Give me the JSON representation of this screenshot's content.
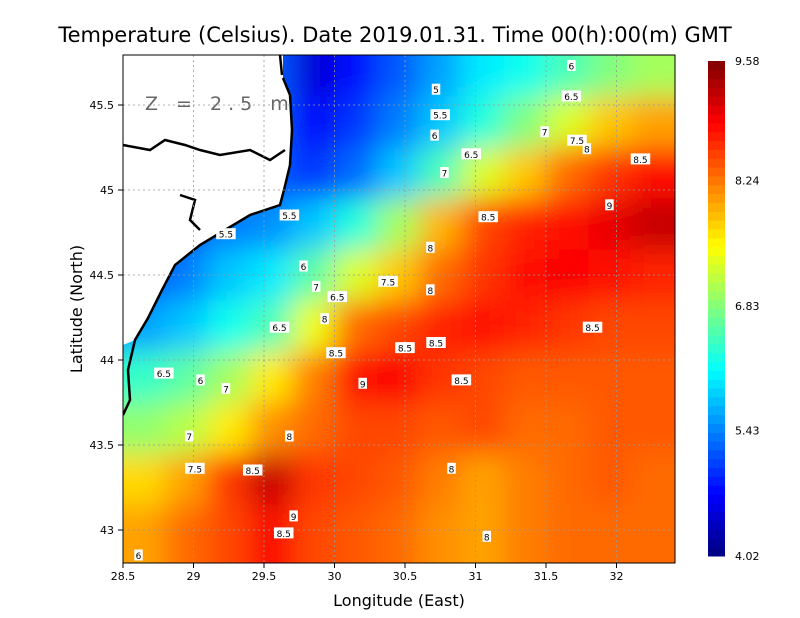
{
  "chart_data": {
    "type": "heatmap",
    "title": "Temperature (Celsius). Date 2019.01.31. Time 00(h):00(m) GMT",
    "xlabel": "Longitude (East)",
    "ylabel": "Latitude (North)",
    "annotation": "Z = 2.5 m",
    "xlim": [
      28.5,
      32.41
    ],
    "ylim": [
      42.81,
      45.79
    ],
    "xticks": [
      "28.5",
      "29",
      "29.5",
      "30",
      "30.5",
      "31",
      "31.5",
      "32"
    ],
    "yticks": [
      "43",
      "43.5",
      "44",
      "44.5",
      "45",
      "45.5"
    ],
    "grid": true,
    "colorbar": {
      "min": 4.02,
      "max": 9.58,
      "ticks": [
        "4.02",
        "5.43",
        "6.83",
        "8.24",
        "9.58"
      ],
      "colormap": "jet"
    },
    "grid_lon": [
      28.65,
      28.95,
      29.25,
      29.55,
      29.85,
      30.15,
      30.45,
      30.75,
      31.05,
      31.35,
      31.65,
      31.95,
      32.25
    ],
    "grid_lat": [
      45.7,
      45.4,
      45.1,
      44.8,
      44.5,
      44.2,
      43.9,
      43.6,
      43.3,
      43.0
    ],
    "values": [
      [
        null,
        null,
        null,
        null,
        4.5,
        4.8,
        5.2,
        5.6,
        6.0,
        6.2,
        6.5,
        6.8,
        7.0
      ],
      [
        null,
        null,
        null,
        null,
        4.7,
        5.0,
        5.4,
        5.8,
        6.3,
        6.8,
        7.3,
        7.8,
        8.0
      ],
      [
        null,
        null,
        null,
        null,
        5.0,
        5.3,
        5.8,
        6.5,
        7.3,
        7.8,
        8.3,
        8.6,
        8.8
      ],
      [
        null,
        null,
        5.4,
        5.5,
        5.8,
        6.3,
        7.0,
        7.9,
        8.5,
        8.7,
        8.8,
        9.0,
        9.2
      ],
      [
        null,
        5.4,
        5.8,
        6.0,
        6.6,
        7.3,
        7.8,
        8.3,
        8.6,
        8.8,
        8.9,
        8.8,
        8.7
      ],
      [
        5.6,
        5.8,
        6.2,
        6.5,
        7.4,
        8.3,
        8.5,
        8.7,
        8.8,
        8.7,
        8.6,
        8.5,
        8.5
      ],
      [
        6.4,
        6.6,
        7.0,
        7.6,
        8.2,
        8.8,
        8.9,
        8.6,
        8.5,
        8.4,
        8.4,
        8.4,
        8.4
      ],
      [
        6.9,
        7.1,
        7.6,
        8.1,
        8.3,
        8.5,
        8.5,
        8.4,
        8.5,
        8.3,
        8.3,
        8.4,
        8.4
      ],
      [
        7.7,
        8.0,
        8.6,
        9.2,
        8.6,
        8.5,
        8.4,
        8.2,
        8.0,
        8.2,
        8.3,
        8.4,
        8.3
      ],
      [
        8.0,
        8.3,
        8.5,
        8.9,
        8.5,
        8.4,
        8.3,
        8.1,
        8.0,
        8.2,
        8.3,
        8.3,
        8.3
      ]
    ],
    "contour_labels": [
      {
        "text": "5",
        "lon": 30.72,
        "lat": 45.59
      },
      {
        "text": "5.5",
        "lon": 30.75,
        "lat": 45.44
      },
      {
        "text": "6",
        "lon": 30.71,
        "lat": 45.32
      },
      {
        "text": "6.5",
        "lon": 30.97,
        "lat": 45.21
      },
      {
        "text": "7",
        "lon": 30.78,
        "lat": 45.1
      },
      {
        "text": "6",
        "lon": 31.68,
        "lat": 45.73
      },
      {
        "text": "6.5",
        "lon": 31.68,
        "lat": 45.55
      },
      {
        "text": "7",
        "lon": 31.49,
        "lat": 45.34
      },
      {
        "text": "7.5",
        "lon": 31.72,
        "lat": 45.29
      },
      {
        "text": "8",
        "lon": 31.79,
        "lat": 45.24
      },
      {
        "text": "8.5",
        "lon": 32.17,
        "lat": 45.18
      },
      {
        "text": "9",
        "lon": 31.95,
        "lat": 44.91
      },
      {
        "text": "8.5",
        "lon": 31.09,
        "lat": 44.84
      },
      {
        "text": "5.5",
        "lon": 29.68,
        "lat": 44.85
      },
      {
        "text": "5.5",
        "lon": 29.23,
        "lat": 44.74
      },
      {
        "text": "8",
        "lon": 30.68,
        "lat": 44.66
      },
      {
        "text": "6",
        "lon": 29.78,
        "lat": 44.55
      },
      {
        "text": "7",
        "lon": 29.87,
        "lat": 44.43
      },
      {
        "text": "7.5",
        "lon": 30.38,
        "lat": 44.46
      },
      {
        "text": "6.5",
        "lon": 30.02,
        "lat": 44.37
      },
      {
        "text": "8",
        "lon": 30.68,
        "lat": 44.41
      },
      {
        "text": "8",
        "lon": 29.93,
        "lat": 44.24
      },
      {
        "text": "6.5",
        "lon": 29.61,
        "lat": 44.19
      },
      {
        "text": "8.5",
        "lon": 31.83,
        "lat": 44.19
      },
      {
        "text": "8.5",
        "lon": 30.01,
        "lat": 44.04
      },
      {
        "text": "8.5",
        "lon": 30.5,
        "lat": 44.07
      },
      {
        "text": "8.5",
        "lon": 30.72,
        "lat": 44.1
      },
      {
        "text": "9",
        "lon": 30.2,
        "lat": 43.86
      },
      {
        "text": "8.5",
        "lon": 30.9,
        "lat": 43.88
      },
      {
        "text": "6.5",
        "lon": 28.79,
        "lat": 43.92
      },
      {
        "text": "6",
        "lon": 29.05,
        "lat": 43.88
      },
      {
        "text": "7",
        "lon": 29.23,
        "lat": 43.83
      },
      {
        "text": "7",
        "lon": 28.97,
        "lat": 43.55
      },
      {
        "text": "8",
        "lon": 29.68,
        "lat": 43.55
      },
      {
        "text": "7.5",
        "lon": 29.01,
        "lat": 43.36
      },
      {
        "text": "8.5",
        "lon": 29.42,
        "lat": 43.35
      },
      {
        "text": "8",
        "lon": 30.83,
        "lat": 43.36
      },
      {
        "text": "9",
        "lon": 29.71,
        "lat": 43.08
      },
      {
        "text": "8.5",
        "lon": 29.64,
        "lat": 42.98
      },
      {
        "text": "8",
        "lon": 31.08,
        "lat": 42.96
      },
      {
        "text": "6",
        "lon": 28.61,
        "lat": 42.85
      }
    ]
  }
}
